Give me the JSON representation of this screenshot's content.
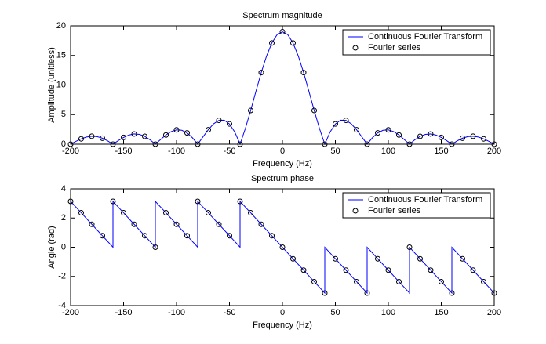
{
  "chart_data": [
    {
      "type": "line",
      "title": "Spectrum magnitude",
      "xlabel": "Frequency (Hz)",
      "ylabel": "Amplitude (unitless)",
      "xlim": [
        -200,
        200
      ],
      "xticks": [
        -200,
        -150,
        -100,
        -50,
        0,
        50,
        100,
        150,
        200
      ],
      "ylim": [
        0,
        20
      ],
      "yticks": [
        0,
        5,
        10,
        15,
        20
      ],
      "legend": "upper right",
      "series": [
        {
          "name": "Continuous Fourier Transform",
          "color": "#0000ff",
          "mode": "line",
          "x": [
            -200,
            -195,
            -190,
            -185,
            -180,
            -175,
            -170,
            -165,
            -160,
            -155,
            -150,
            -145,
            -140,
            -135,
            -130,
            -125,
            -120,
            -115,
            -110,
            -105,
            -100,
            -95,
            -90,
            -85,
            -80,
            -75,
            -70,
            -65,
            -60,
            -55,
            -50,
            -45,
            -40,
            -35,
            -30,
            -25,
            -20,
            -15,
            -10,
            -5,
            0,
            5,
            10,
            15,
            20,
            25,
            30,
            35,
            40,
            45,
            50,
            55,
            60,
            65,
            70,
            75,
            80,
            85,
            90,
            95,
            100,
            105,
            110,
            115,
            120,
            125,
            130,
            135,
            140,
            145,
            150,
            155,
            160,
            165,
            170,
            175,
            180,
            185,
            190,
            195,
            200
          ],
          "values": [
            0,
            0.47,
            0.9,
            1.21,
            1.34,
            1.28,
            1.01,
            0.56,
            0,
            0.6,
            1.14,
            1.54,
            1.73,
            1.66,
            1.32,
            0.74,
            0,
            0.8,
            1.56,
            2.13,
            2.42,
            2.35,
            1.9,
            1.09,
            0,
            1.23,
            2.44,
            3.44,
            4.03,
            4.06,
            3.42,
            2.06,
            0,
            2.65,
            5.7,
            8.94,
            12.1,
            14.9,
            17.1,
            18.52,
            19,
            18.52,
            17.1,
            14.9,
            12.1,
            8.94,
            5.7,
            2.65,
            0,
            2.06,
            3.42,
            4.06,
            4.03,
            3.44,
            2.44,
            1.23,
            0,
            1.09,
            1.9,
            2.35,
            2.42,
            2.13,
            1.56,
            0.8,
            0,
            0.74,
            1.32,
            1.66,
            1.73,
            1.54,
            1.14,
            0.6,
            0,
            0.56,
            1.01,
            1.28,
            1.34,
            1.21,
            0.9,
            0.47,
            0
          ]
        },
        {
          "name": "Fourier series",
          "color": "#000000",
          "mode": "markers",
          "x": [
            -200,
            -190,
            -180,
            -170,
            -160,
            -150,
            -140,
            -130,
            -120,
            -110,
            -100,
            -90,
            -80,
            -70,
            -60,
            -50,
            -40,
            -30,
            -20,
            -10,
            0,
            10,
            20,
            30,
            40,
            50,
            60,
            70,
            80,
            90,
            100,
            110,
            120,
            130,
            140,
            150,
            160,
            170,
            180,
            190,
            200
          ],
          "values": [
            0,
            0.9,
            1.34,
            1.01,
            0,
            1.14,
            1.73,
            1.32,
            0,
            1.56,
            2.42,
            1.9,
            0,
            2.44,
            4.03,
            3.42,
            0,
            5.7,
            12.1,
            17.1,
            19,
            17.1,
            12.1,
            5.7,
            0,
            3.42,
            4.03,
            2.44,
            0,
            1.9,
            2.42,
            1.56,
            0,
            1.32,
            1.73,
            1.14,
            0,
            1.01,
            1.34,
            0.9,
            0
          ]
        }
      ]
    },
    {
      "type": "line",
      "title": "Spectrum phase",
      "xlabel": "Frequency (Hz)",
      "ylabel": "Angle (rad)",
      "xlim": [
        -200,
        200
      ],
      "xticks": [
        -200,
        -150,
        -100,
        -50,
        0,
        50,
        100,
        150,
        200
      ],
      "ylim": [
        -4,
        4
      ],
      "yticks": [
        -4,
        -2,
        0,
        2,
        4
      ],
      "legend": "upper right",
      "series": [
        {
          "name": "Continuous Fourier Transform",
          "color": "#0000ff",
          "mode": "line",
          "x": [
            -200,
            -190,
            -180,
            -170,
            -160,
            -160,
            -150,
            -140,
            -130,
            -120,
            -120,
            -110,
            -100,
            -90,
            -80,
            -80,
            -70,
            -60,
            -50,
            -40,
            -40,
            -30,
            -20,
            -10,
            0,
            10,
            20,
            30,
            40,
            40,
            50,
            60,
            70,
            80,
            80,
            90,
            100,
            110,
            120,
            120,
            130,
            140,
            150,
            160,
            160,
            170,
            180,
            190,
            200,
            200
          ],
          "values": [
            3.14,
            2.36,
            1.57,
            0.79,
            0,
            3.14,
            2.36,
            1.57,
            0.79,
            0,
            3.14,
            2.36,
            1.57,
            0.79,
            0,
            3.14,
            2.36,
            1.57,
            0.79,
            0,
            3.14,
            2.36,
            1.57,
            0.79,
            0,
            -0.79,
            -1.57,
            -2.36,
            -3.14,
            0,
            -0.79,
            -1.57,
            -2.36,
            -3.14,
            0,
            -0.79,
            -1.57,
            -2.36,
            -3.14,
            0,
            -0.79,
            -1.57,
            -2.36,
            -3.14,
            0,
            -0.79,
            -1.57,
            -2.36,
            -3.14,
            -1.57
          ]
        },
        {
          "name": "Fourier series",
          "color": "#000000",
          "mode": "markers",
          "x": [
            -200,
            -190,
            -180,
            -170,
            -160,
            -150,
            -140,
            -130,
            -120,
            -110,
            -100,
            -90,
            -80,
            -70,
            -60,
            -50,
            -40,
            -30,
            -20,
            -10,
            0,
            10,
            20,
            30,
            40,
            50,
            60,
            70,
            80,
            90,
            100,
            110,
            120,
            130,
            140,
            150,
            160,
            170,
            180,
            190,
            200
          ],
          "values": [
            3.14,
            2.36,
            1.57,
            0.79,
            3.14,
            2.36,
            1.57,
            0.79,
            0,
            2.36,
            1.57,
            0.79,
            3.14,
            2.36,
            1.57,
            0.79,
            3.14,
            2.36,
            1.57,
            0.79,
            0,
            -0.79,
            -1.57,
            -2.36,
            -3.14,
            -0.79,
            -1.57,
            -2.36,
            -3.14,
            -0.79,
            -1.57,
            -2.36,
            0,
            -0.79,
            -1.57,
            -2.36,
            -3.14,
            -0.79,
            -1.57,
            -2.36,
            -3.14
          ]
        }
      ]
    }
  ]
}
